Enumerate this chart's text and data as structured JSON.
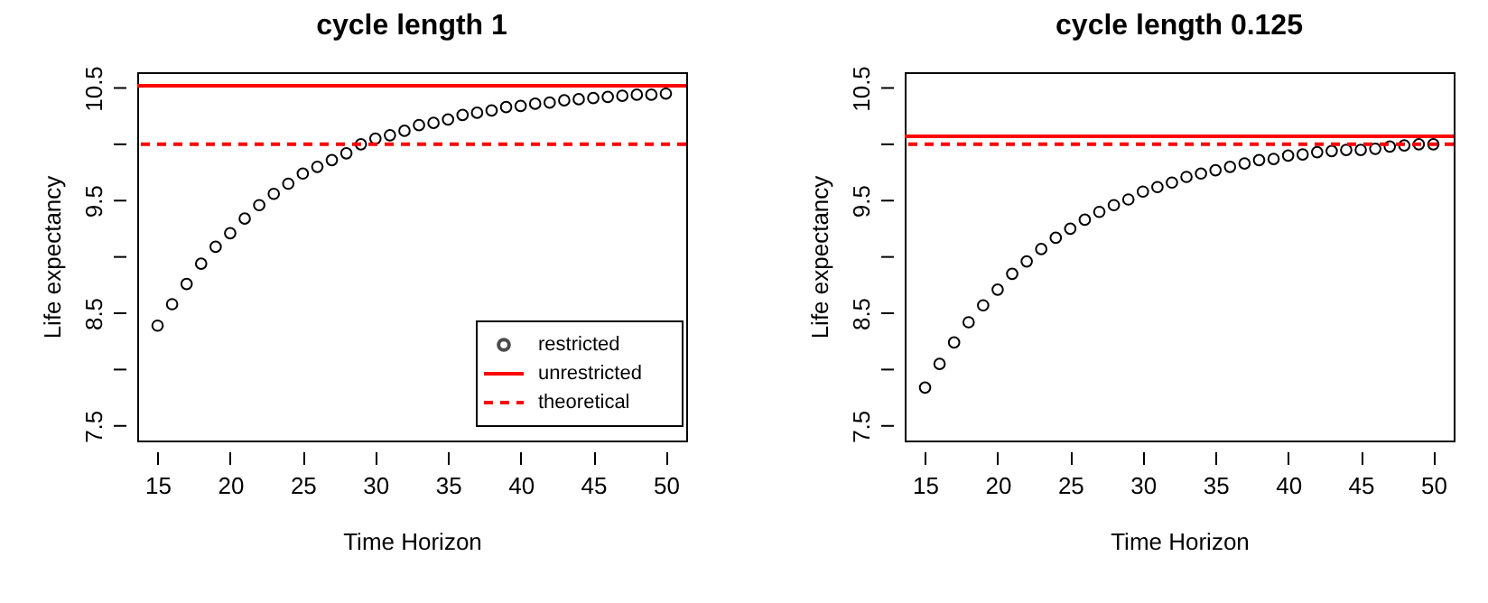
{
  "chart_data": [
    {
      "type": "scatter",
      "title": "cycle length 1",
      "xlabel": "Time Horizon",
      "ylabel": "Life expectancy",
      "x": [
        15,
        16,
        17,
        18,
        19,
        20,
        21,
        22,
        23,
        24,
        25,
        26,
        27,
        28,
        29,
        30,
        31,
        32,
        33,
        34,
        35,
        36,
        37,
        38,
        39,
        40,
        41,
        42,
        43,
        44,
        45,
        46,
        47,
        48,
        49,
        50
      ],
      "series": [
        {
          "name": "restricted",
          "color": "#000000",
          "values": [
            8.39,
            8.58,
            8.76,
            8.94,
            9.09,
            9.21,
            9.34,
            9.46,
            9.56,
            9.65,
            9.74,
            9.8,
            9.86,
            9.92,
            10.0,
            10.05,
            10.08,
            10.12,
            10.17,
            10.19,
            10.22,
            10.26,
            10.28,
            10.3,
            10.33,
            10.34,
            10.36,
            10.37,
            10.39,
            10.4,
            10.41,
            10.42,
            10.43,
            10.44,
            10.44,
            10.45
          ]
        }
      ],
      "ref_lines": [
        {
          "axis": "y",
          "value": 10.52,
          "label": "unrestricted",
          "color": "#ff0000",
          "line_style": "solid"
        },
        {
          "axis": "y",
          "value": 10.0,
          "label": "theoretical",
          "color": "#ff0000",
          "line_style": "dashed"
        }
      ],
      "xlim": [
        13.6,
        51.4
      ],
      "xticks": [
        15,
        20,
        25,
        30,
        35,
        40,
        45,
        50
      ],
      "ylim": [
        7.37,
        10.64
      ],
      "yticks": [
        7.5,
        {
          "value": 8,
          "label": null
        },
        8.5,
        {
          "value": 9,
          "label": null
        },
        9.5,
        {
          "value": 10,
          "label": null
        },
        10.5
      ],
      "marker": "circle",
      "grid": false,
      "legend": "bottom right"
    },
    {
      "type": "scatter",
      "title": "cycle length 0.125",
      "xlabel": "Time Horizon",
      "ylabel": "Life expectancy",
      "x": [
        15,
        16,
        17,
        18,
        19,
        20,
        21,
        22,
        23,
        24,
        25,
        26,
        27,
        28,
        29,
        30,
        31,
        32,
        33,
        34,
        35,
        36,
        37,
        38,
        39,
        40,
        41,
        42,
        43,
        44,
        45,
        46,
        47,
        48,
        49,
        50
      ],
      "series": [
        {
          "color": "#000000",
          "values": [
            7.84,
            8.05,
            8.24,
            8.42,
            8.57,
            8.71,
            8.85,
            8.96,
            9.07,
            9.17,
            9.25,
            9.33,
            9.4,
            9.46,
            9.51,
            9.58,
            9.62,
            9.66,
            9.71,
            9.74,
            9.77,
            9.8,
            9.83,
            9.86,
            9.87,
            9.9,
            9.91,
            9.93,
            9.94,
            9.95,
            9.95,
            9.96,
            9.98,
            9.99,
            10.0,
            10.0
          ]
        }
      ],
      "ref_lines": [
        {
          "axis": "y",
          "value": 10.07,
          "color": "#ff0000",
          "line_style": "solid"
        },
        {
          "axis": "y",
          "value": 10.0,
          "color": "#ff0000",
          "line_style": "dashed"
        }
      ],
      "xlim": [
        13.6,
        51.4
      ],
      "xticks": [
        15,
        20,
        25,
        30,
        35,
        40,
        45,
        50
      ],
      "ylim": [
        7.37,
        10.64
      ],
      "yticks": [
        7.5,
        {
          "value": 8,
          "label": null
        },
        8.5,
        {
          "value": 9,
          "label": null
        },
        9.5,
        {
          "value": 10,
          "label": null
        },
        10.5
      ],
      "marker": "circle",
      "grid": false,
      "legend": false
    }
  ]
}
